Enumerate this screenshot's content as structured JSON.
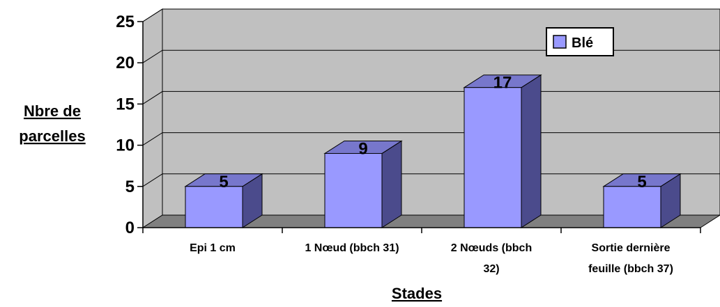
{
  "chart_data": {
    "type": "bar",
    "categories": [
      [
        "Epi 1 cm"
      ],
      [
        "1 Nœud (bbch 31)"
      ],
      [
        "2 Nœuds (bbch",
        "32)"
      ],
      [
        "Sortie dernière",
        "feuille (bbch 37)"
      ]
    ],
    "series": [
      {
        "name": "Blé",
        "values": [
          5,
          9,
          17,
          5
        ]
      }
    ],
    "data_labels": [
      "5",
      "9",
      "17",
      "5"
    ],
    "ylabel": [
      "Nbre de",
      "parcelles"
    ],
    "xlabel": "Stades",
    "ylim": [
      0,
      25
    ],
    "yticks": [
      0,
      5,
      10,
      15,
      20,
      25
    ],
    "grid": true,
    "legend_position": "top-right",
    "three_d": true,
    "colors": {
      "bar_front": "#9999ff",
      "bar_side": "#4b4b8c",
      "bar_top": "#7777cc",
      "wall": "#c0c0c0",
      "floor": "#808080"
    }
  }
}
